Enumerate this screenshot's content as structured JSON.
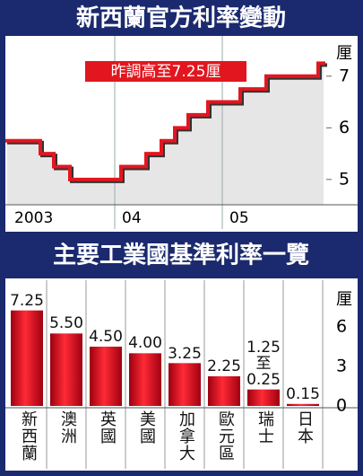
{
  "chart_data": [
    {
      "type": "line",
      "title": "新西蘭官方利率變動",
      "annotation": "昨調高至7.25厘",
      "y_unit": "厘",
      "drawstyle": "steps-post",
      "color": "#e2161f",
      "grid": true,
      "x": [
        0,
        3.7,
        5.2,
        7,
        12.7,
        15.5,
        17.2,
        18.7,
        20.2,
        22.4,
        26,
        28.9,
        34.7
      ],
      "values": [
        5.75,
        5.5,
        5.25,
        5.0,
        5.25,
        5.5,
        5.75,
        6.0,
        6.25,
        6.5,
        6.75,
        7.0,
        7.25
      ],
      "xlim": [
        0,
        36.2
      ],
      "ylim": [
        4.51,
        7.64
      ],
      "xticks": [
        {
          "value": 0,
          "label": "2003"
        },
        {
          "value": 12,
          "label": "04"
        },
        {
          "value": 24,
          "label": "05"
        }
      ],
      "yticks": [
        5,
        6,
        7
      ]
    },
    {
      "type": "bar",
      "title": "主要工業國基準利率一覽",
      "y_unit": "厘",
      "color": "#e2161f",
      "categories": [
        "新西蘭",
        "澳洲",
        "英國",
        "美國",
        "加拿大",
        "歐元區",
        "瑞士",
        "日本"
      ],
      "values": [
        7.25,
        5.5,
        4.5,
        4.0,
        3.25,
        2.25,
        1.25,
        0.15
      ],
      "value_labels": [
        "7.25",
        "5.50",
        "4.50",
        "4.00",
        "3.25",
        "2.25",
        "1.25\n至\n0.25",
        "0.15"
      ],
      "ylim": [
        0,
        9.34
      ],
      "yticks": [
        0,
        3,
        6
      ]
    }
  ]
}
